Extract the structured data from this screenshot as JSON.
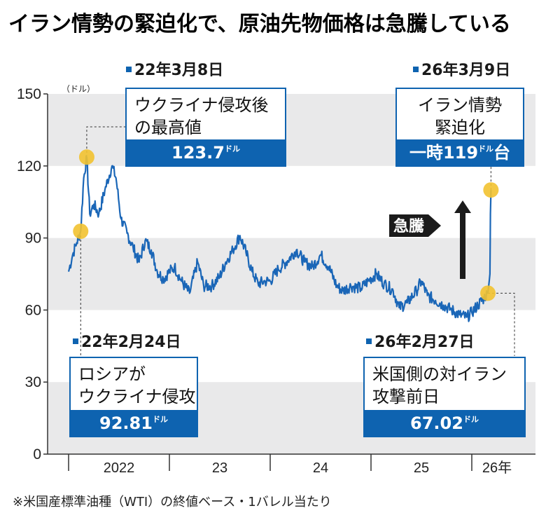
{
  "title": "イラン情勢の緊迫化で、原油先物価格は急騰している",
  "footnote": "※米国産標準油種（WTI）の終値ベース・1バレル当たり",
  "colors": {
    "line": "#1a66b7",
    "accent": "#0e63b0",
    "band": "#e9e9ea",
    "marker": "#f2c230"
  },
  "chart_data": {
    "type": "line",
    "title": "イラン情勢の緊迫化で、原油先物価格は急騰している",
    "ylabel": "（ドル）",
    "ylim": [
      0,
      150
    ],
    "yticks": [
      0,
      30,
      60,
      90,
      120,
      150
    ],
    "xticks": [
      "2022",
      "23",
      "24",
      "25",
      "26年"
    ],
    "grid_bands": true,
    "series": [
      {
        "values": [
          [
            2022.0,
            76
          ],
          [
            2022.04,
            83
          ],
          [
            2022.08,
            88
          ],
          [
            2022.12,
            92.81
          ],
          [
            2022.15,
            115
          ],
          [
            2022.18,
            123.7
          ],
          [
            2022.21,
            100
          ],
          [
            2022.25,
            104
          ],
          [
            2022.3,
            100
          ],
          [
            2022.36,
            110
          ],
          [
            2022.43,
            120
          ],
          [
            2022.47,
            115
          ],
          [
            2022.52,
            98
          ],
          [
            2022.58,
            92
          ],
          [
            2022.64,
            86
          ],
          [
            2022.7,
            80
          ],
          [
            2022.76,
            89
          ],
          [
            2022.82,
            85
          ],
          [
            2022.88,
            76
          ],
          [
            2022.94,
            73
          ],
          [
            2023.0,
            76
          ],
          [
            2023.05,
            78
          ],
          [
            2023.12,
            72
          ],
          [
            2023.2,
            67
          ],
          [
            2023.28,
            80
          ],
          [
            2023.34,
            70
          ],
          [
            2023.42,
            70
          ],
          [
            2023.5,
            74
          ],
          [
            2023.56,
            80
          ],
          [
            2023.63,
            85
          ],
          [
            2023.7,
            91
          ],
          [
            2023.76,
            84
          ],
          [
            2023.82,
            76
          ],
          [
            2023.88,
            71
          ],
          [
            2023.95,
            72
          ],
          [
            2024.0,
            72
          ],
          [
            2024.08,
            77
          ],
          [
            2024.16,
            80
          ],
          [
            2024.26,
            85
          ],
          [
            2024.34,
            80
          ],
          [
            2024.42,
            78
          ],
          [
            2024.5,
            83
          ],
          [
            2024.58,
            78
          ],
          [
            2024.66,
            70
          ],
          [
            2024.72,
            68
          ],
          [
            2024.8,
            70
          ],
          [
            2024.9,
            69
          ],
          [
            2024.97,
            72
          ],
          [
            2025.05,
            75
          ],
          [
            2025.13,
            71
          ],
          [
            2025.22,
            68
          ],
          [
            2025.28,
            61
          ],
          [
            2025.36,
            63
          ],
          [
            2025.45,
            68
          ],
          [
            2025.5,
            72
          ],
          [
            2025.56,
            66
          ],
          [
            2025.64,
            64
          ],
          [
            2025.72,
            62
          ],
          [
            2025.8,
            60
          ],
          [
            2025.88,
            58
          ],
          [
            2025.95,
            57
          ],
          [
            2026.0,
            59
          ],
          [
            2026.06,
            62
          ],
          [
            2026.12,
            65
          ],
          [
            2026.16,
            67.02
          ],
          [
            2026.18,
            75
          ],
          [
            2026.185,
            100
          ],
          [
            2026.19,
            110
          ]
        ]
      }
    ],
    "annotations": [
      {
        "date": "22年3月8日",
        "text": [
          "ウクライナ侵攻後",
          "の最高値"
        ],
        "value": "123.7",
        "unit": "ドル",
        "x": 2022.18,
        "y": 123.7
      },
      {
        "date": "26年3月9日",
        "text": [
          "イラン情勢",
          "緊迫化"
        ],
        "value_prefix": "一時",
        "value": "119",
        "unit": "ドル",
        "value_suffix": "台",
        "x": 2026.19,
        "y": 110
      },
      {
        "date": "22年2月24日",
        "text": [
          "ロシアが",
          "ウクライナ侵攻"
        ],
        "value": "92.81",
        "unit": "ドル",
        "x": 2022.12,
        "y": 92.81
      },
      {
        "date": "26年2月27日",
        "text": [
          "米国側の対イラン",
          "攻撃前日"
        ],
        "value": "67.02",
        "unit": "ドル",
        "x": 2026.16,
        "y": 67.02
      }
    ],
    "callout": "急騰"
  }
}
